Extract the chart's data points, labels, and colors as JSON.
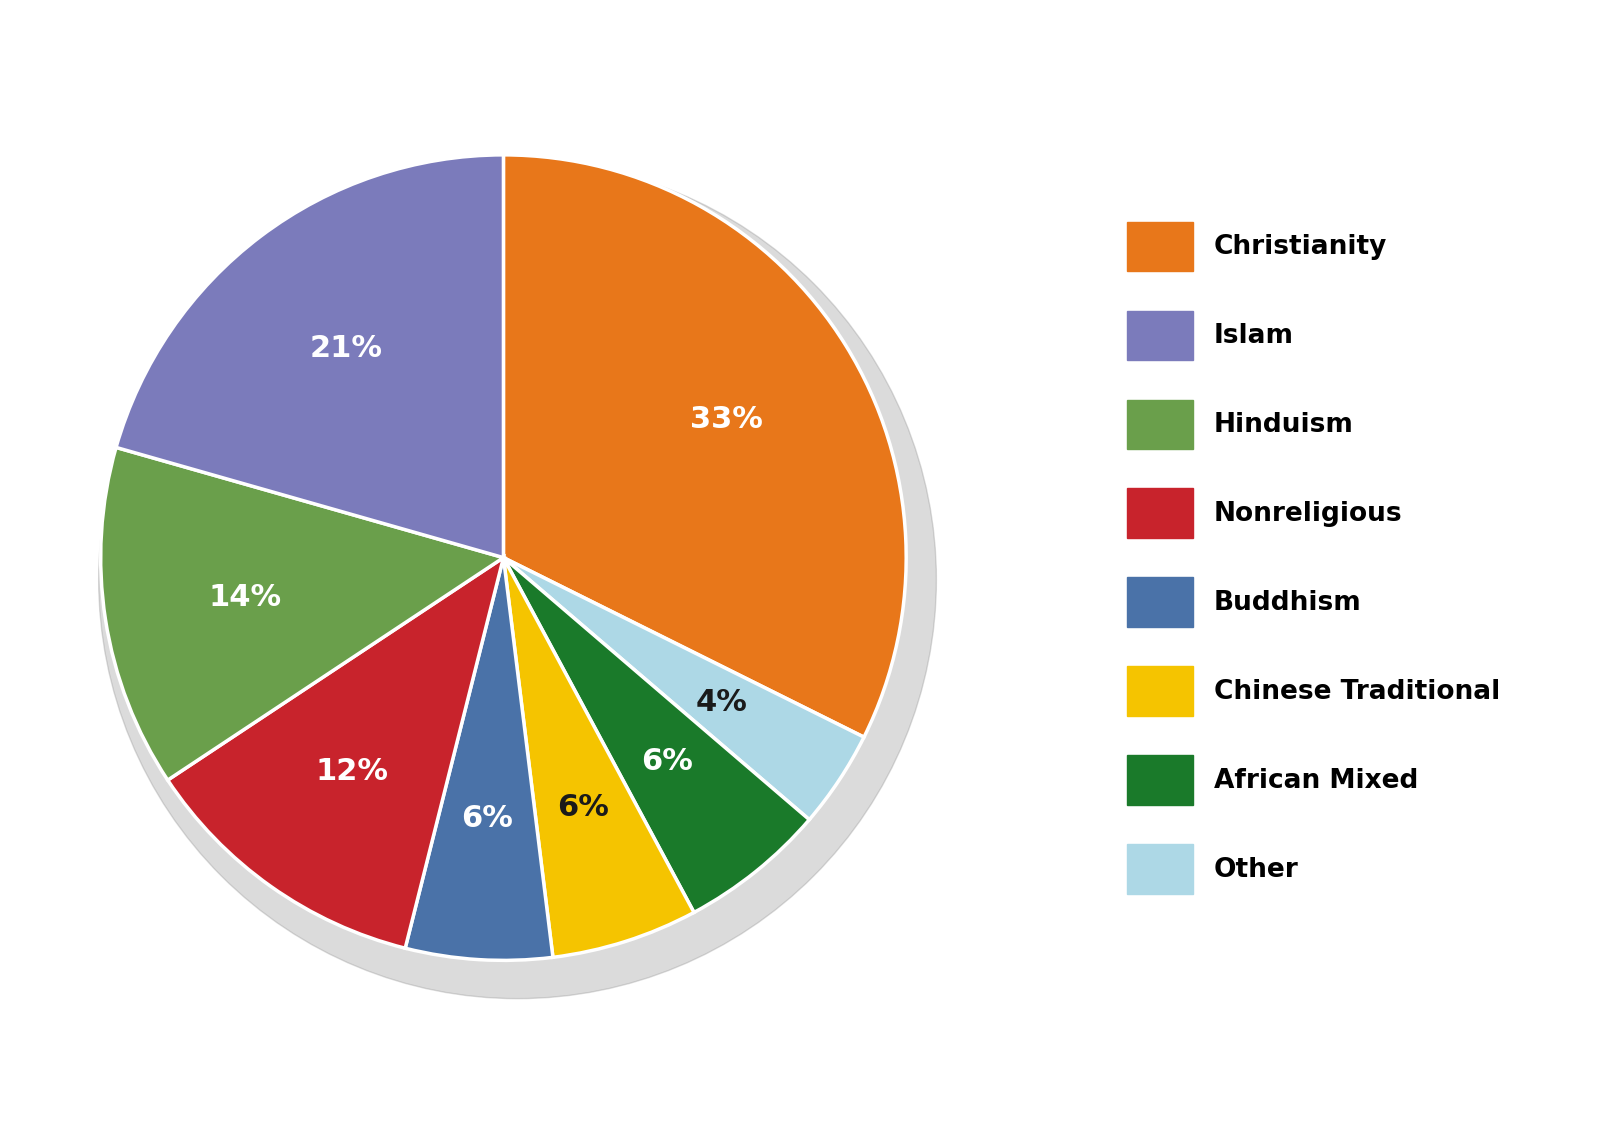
{
  "labels_ordered": [
    "Christianity",
    "Other",
    "African Mixed",
    "Chinese Traditional",
    "Buddhism",
    "Nonreligious",
    "Hinduism",
    "Islam"
  ],
  "values_ordered": [
    33,
    4,
    6,
    6,
    6,
    12,
    14,
    21
  ],
  "colors_ordered": [
    "#E8771A",
    "#ADD8E6",
    "#1A7A2A",
    "#F5C400",
    "#4A72A8",
    "#C8232C",
    "#6A9F4B",
    "#7B7BBB"
  ],
  "label_colors_ordered": [
    "white",
    "#1a1a1a",
    "white",
    "#1a1a1a",
    "white",
    "white",
    "white",
    "white"
  ],
  "legend_labels": [
    "Christianity",
    "Islam",
    "Hinduism",
    "Nonreligious",
    "Buddhism",
    "Chinese Traditional",
    "African Mixed",
    "Other"
  ],
  "legend_colors": [
    "#E8771A",
    "#7B7BBB",
    "#6A9F4B",
    "#C8232C",
    "#4A72A8",
    "#F5C400",
    "#1A7A2A",
    "#ADD8E6"
  ],
  "startangle": 90,
  "background_color": "#ffffff",
  "legend_fontsize": 19,
  "pct_fontsize": 22,
  "figsize": [
    16.24,
    11.38
  ]
}
